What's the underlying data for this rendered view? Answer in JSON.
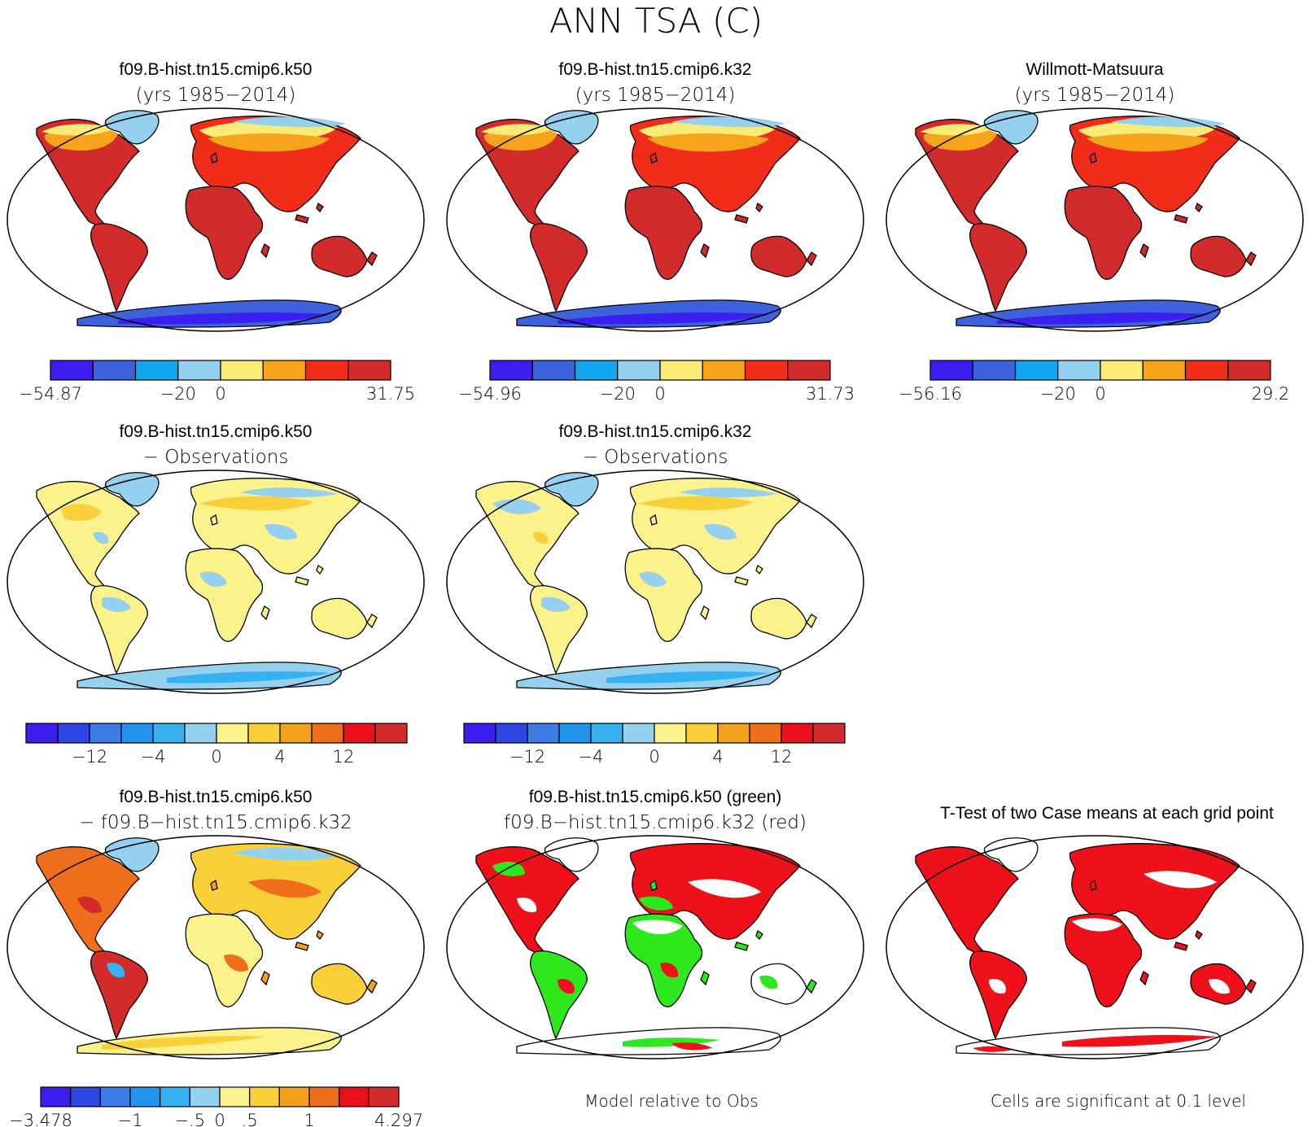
{
  "title": "ANN TSA (C)",
  "palettes": {
    "abs": [
      "#3b1ff0",
      "#3d62dc",
      "#12a6ee",
      "#95d0ee",
      "#f8ec76",
      "#f6a41c",
      "#ef2d1a",
      "#d22b2b"
    ],
    "diff": [
      "#3b1ff0",
      "#2b46e3",
      "#3b7ce6",
      "#2393ee",
      "#36b1f1",
      "#95d0ee",
      "#fbf28c",
      "#f9cf3a",
      "#f5a11d",
      "#ef6e1c",
      "#e9101b",
      "#d22b2b"
    ],
    "ttest": {
      "case_a": "#2ee81e",
      "case_b": "#ee101a",
      "sig": "#ee101a",
      "ocean": "#ffffff",
      "coast": "#000000"
    }
  },
  "panels": [
    {
      "name": "panel-model-k50",
      "title": "f09.B-hist.tn15.cmip6.k50",
      "subtitle": "(yrs 1985−2014)",
      "kind": "abs",
      "colorbar": {
        "colors": "abs",
        "labels": [
          "−54.87",
          "−20",
          "0",
          "31.75"
        ]
      }
    },
    {
      "name": "panel-model-k32",
      "title": "f09.B-hist.tn15.cmip6.k32",
      "subtitle": "(yrs 1985−2014)",
      "kind": "abs",
      "colorbar": {
        "colors": "abs",
        "labels": [
          "−54.96",
          "−20",
          "0",
          "31.73"
        ]
      }
    },
    {
      "name": "panel-obs",
      "title": "Willmott-Matsuura",
      "subtitle": "(yrs 1985−2014)",
      "kind": "abs",
      "colorbar": {
        "colors": "abs",
        "labels": [
          "−56.16",
          "−20",
          "0",
          "29.2"
        ]
      }
    },
    {
      "name": "panel-k50-minus-obs",
      "title": "f09.B-hist.tn15.cmip6.k50",
      "subtitle": "− Observations",
      "kind": "bias",
      "colorbar": {
        "colors": "diff",
        "labels": [
          "−12",
          "−4",
          "0",
          "4",
          "12"
        ]
      }
    },
    {
      "name": "panel-k32-minus-obs",
      "title": "f09.B-hist.tn15.cmip6.k32",
      "subtitle": "− Observations",
      "kind": "bias",
      "colorbar": {
        "colors": "diff",
        "labels": [
          "−12",
          "−4",
          "0",
          "4",
          "12"
        ]
      }
    },
    {
      "name": "panel-k50-minus-k32",
      "title": "f09.B-hist.tn15.cmip6.k50",
      "subtitle": "− f09.B−hist.tn15.cmip6.k32",
      "kind": "diff",
      "colorbar": {
        "colors": "diff",
        "labels": [
          "−3.478",
          "−1",
          "−.5",
          "0",
          ".5",
          "1",
          "4.297"
        ]
      }
    },
    {
      "name": "panel-closer-to-obs",
      "title": "f09.B-hist.tn15.cmip6.k50 (green)",
      "subtitle": "f09.B−hist.tn15.cmip6.k32 (red)",
      "kind": "compare",
      "note": "Model relative to Obs"
    },
    {
      "name": "panel-ttest",
      "title": "T-Test of two Case means at each grid point",
      "subtitle": "",
      "kind": "ttest",
      "note": "Cells are significant at 0.1 level"
    }
  ]
}
